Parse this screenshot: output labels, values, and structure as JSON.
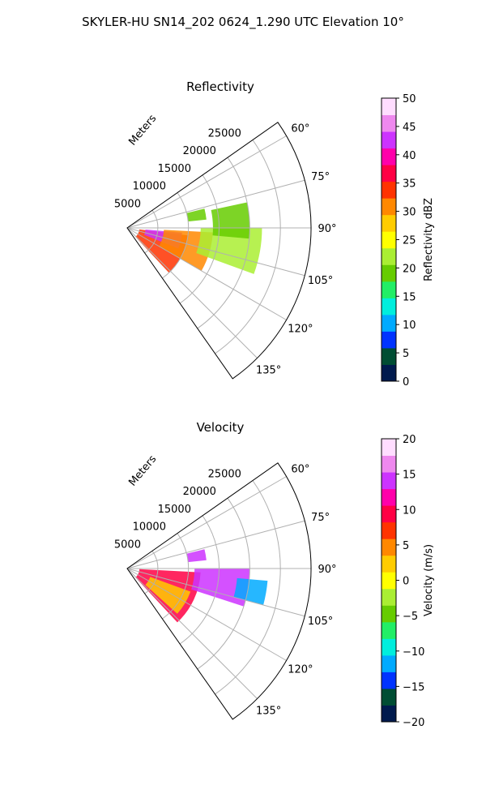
{
  "figure": {
    "title": "SKYLER-HU  SN14_202  0624_1.290 UTC Elevation 10°"
  },
  "chart_data": [
    {
      "type": "heatmap",
      "projection": "polar-sector",
      "title": "Reflectivity",
      "field": "reflectivity",
      "azimuth_range_deg": [
        55,
        145
      ],
      "azimuth_ticks": [
        "60°",
        "75°",
        "90°",
        "105°",
        "120°",
        "135°"
      ],
      "azimuth_tick_values": [
        60,
        75,
        90,
        105,
        120,
        135
      ],
      "range_axis_label": "Meters",
      "range_max_m": 30000,
      "range_ticks": [
        "5000",
        "10000",
        "15000",
        "20000",
        "25000"
      ],
      "range_tick_values": [
        5000,
        10000,
        15000,
        20000,
        25000
      ],
      "grid": true,
      "colorbar": {
        "label": "Reflectivity dBZ",
        "range": [
          0,
          50
        ],
        "ticks": [
          "0",
          "5",
          "10",
          "15",
          "20",
          "25",
          "30",
          "35",
          "40",
          "45",
          "50"
        ],
        "tick_values": [
          0,
          5,
          10,
          15,
          20,
          25,
          30,
          35,
          40,
          45,
          50
        ],
        "colormap": [
          "#001a4d",
          "#004d33",
          "#0033ff",
          "#00aaff",
          "#00eedd",
          "#22ee66",
          "#66cc00",
          "#aaee33",
          "#ffff00",
          "#ffcc00",
          "#ff8800",
          "#ff3300",
          "#ff0044",
          "#ff00aa",
          "#cc33ff",
          "#ee88ee",
          "#ffddff"
        ]
      },
      "echo_regions": [
        {
          "az": [
            97,
            137
          ],
          "range_m": [
            2000,
            10000
          ],
          "value": 35
        },
        {
          "az": [
            95,
            112
          ],
          "range_m": [
            3000,
            9000
          ],
          "value": 42
        },
        {
          "az": [
            93,
            120
          ],
          "range_m": [
            6000,
            14000
          ],
          "value": 30
        },
        {
          "az": [
            90,
            110
          ],
          "range_m": [
            12000,
            22000
          ],
          "value": 22
        },
        {
          "az": [
            78,
            95
          ],
          "range_m": [
            14000,
            20000
          ],
          "value": 18
        },
        {
          "az": [
            76,
            84
          ],
          "range_m": [
            10000,
            13000
          ],
          "value": 20
        }
      ]
    },
    {
      "type": "heatmap",
      "projection": "polar-sector",
      "title": "Velocity",
      "field": "velocity",
      "azimuth_range_deg": [
        55,
        145
      ],
      "azimuth_ticks": [
        "60°",
        "75°",
        "90°",
        "105°",
        "120°",
        "135°"
      ],
      "azimuth_tick_values": [
        60,
        75,
        90,
        105,
        120,
        135
      ],
      "range_axis_label": "Meters",
      "range_max_m": 30000,
      "range_ticks": [
        "5000",
        "10000",
        "15000",
        "20000",
        "25000"
      ],
      "range_tick_values": [
        5000,
        10000,
        15000,
        20000,
        25000
      ],
      "grid": true,
      "colorbar": {
        "label": "Velocity (m/s)",
        "range": [
          -20,
          20
        ],
        "ticks": [
          "−20",
          "−15",
          "−10",
          "−5",
          "0",
          "5",
          "10",
          "15",
          "20"
        ],
        "tick_values": [
          -20,
          -15,
          -10,
          -5,
          0,
          5,
          10,
          15,
          20
        ],
        "colormap": [
          "#001a4d",
          "#004d33",
          "#0033ff",
          "#00aaff",
          "#00eedd",
          "#22ee66",
          "#66cc00",
          "#aaee33",
          "#ffff00",
          "#ffcc00",
          "#ff8800",
          "#ff3300",
          "#ff0044",
          "#ff00aa",
          "#cc33ff",
          "#ee88ee",
          "#ffddff"
        ]
      },
      "echo_regions": [
        {
          "az": [
            93,
            137
          ],
          "range_m": [
            2000,
            12000
          ],
          "value": 10
        },
        {
          "az": [
            110,
            132
          ],
          "range_m": [
            4000,
            11000
          ],
          "value": 2
        },
        {
          "az": [
            90,
            108
          ],
          "range_m": [
            11000,
            20000
          ],
          "value": 13
        },
        {
          "az": [
            95,
            105
          ],
          "range_m": [
            18000,
            23000
          ],
          "value": -12
        },
        {
          "az": [
            76,
            84
          ],
          "range_m": [
            10000,
            13000
          ],
          "value": 15
        }
      ]
    }
  ]
}
